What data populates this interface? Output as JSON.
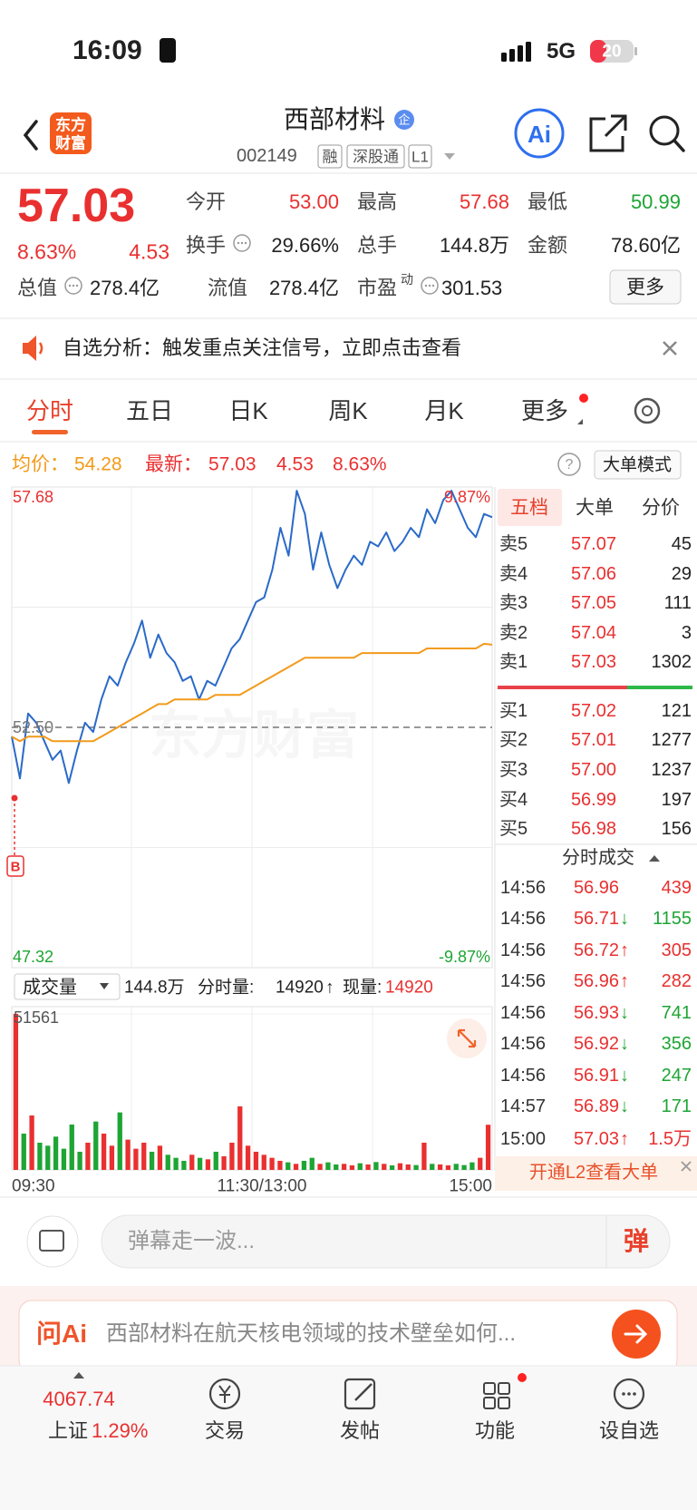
{
  "status_bar": {
    "time": "16:09",
    "network": "5G",
    "battery": "20"
  },
  "header": {
    "logo": [
      "东方",
      "财富"
    ],
    "title": "西部材料",
    "badge": "企",
    "code": "002149",
    "tags": [
      "融",
      "深股通",
      "L1"
    ],
    "ai": "Ai"
  },
  "quote": {
    "price": "57.03",
    "change_pct": "8.63%",
    "change": "4.53",
    "stats": [
      {
        "label": "今开",
        "value": "53.00",
        "color": "#e93030"
      },
      {
        "label": "最高",
        "value": "57.68",
        "color": "#e93030"
      },
      {
        "label": "最低",
        "value": "50.99",
        "color": "#1ea534"
      },
      {
        "label": "换手",
        "value": "29.66%",
        "info": true
      },
      {
        "label": "总手",
        "value": "144.8万"
      },
      {
        "label": "金额",
        "value": "78.60亿"
      },
      {
        "label": "总值",
        "value": "278.4亿",
        "info": true
      },
      {
        "label": "流值",
        "value": "278.4亿"
      },
      {
        "label": "市盈",
        "sup": "动",
        "value": "301.53",
        "info": true
      }
    ],
    "more": "更多"
  },
  "notice": {
    "text": "自选分析：触发重点关注信号，立即点击查看"
  },
  "tabs": {
    "items": [
      "分时",
      "五日",
      "日K",
      "周K",
      "月K",
      "更多"
    ],
    "active": 0
  },
  "summary": {
    "avg_label": "均价：",
    "avg": "54.28",
    "last_label": "最新：",
    "last": "57.03",
    "change": "4.53",
    "change_pct": "8.63%",
    "help": "?",
    "mode": "大单模式"
  },
  "chart_data": [
    {
      "type": "line",
      "ylim": [
        47.32,
        57.68
      ],
      "yticks": [
        57.68,
        {
          "value": 52.5,
          "label": "52.50"
        },
        47.32
      ],
      "y2lim": [
        -9.87,
        9.87
      ],
      "y2ticks": [
        {
          "value": 9.87,
          "label": "9.87%"
        },
        {
          "value": -9.87,
          "label": "-9.87%"
        }
      ],
      "marker": "B",
      "watermark": "东方财富",
      "series": [
        {
          "color": "#2a6ac8",
          "values": [
            52.3,
            51.4,
            52.8,
            52.6,
            52.2,
            51.8,
            52.0,
            51.3,
            52.0,
            52.6,
            52.4,
            53.1,
            53.6,
            53.4,
            53.9,
            54.3,
            54.8,
            54.0,
            54.5,
            54.1,
            53.9,
            53.5,
            53.6,
            53.1,
            53.5,
            53.4,
            53.8,
            54.2,
            54.4,
            54.8,
            55.2,
            55.3,
            55.9,
            56.8,
            56.2,
            57.6,
            57.1,
            55.9,
            56.7,
            56.0,
            55.5,
            55.9,
            56.2,
            56.0,
            56.5,
            56.4,
            56.7,
            56.3,
            56.5,
            56.8,
            56.6,
            57.2,
            56.9,
            57.4,
            57.6,
            57.2,
            56.8,
            56.6,
            57.1,
            57.03
          ]
        },
        {
          "color": "#f29a1a",
          "values": [
            52.3,
            52.2,
            52.3,
            52.3,
            52.3,
            52.2,
            52.2,
            52.2,
            52.2,
            52.2,
            52.2,
            52.3,
            52.4,
            52.5,
            52.6,
            52.7,
            52.8,
            52.9,
            53.0,
            53.0,
            53.1,
            53.1,
            53.1,
            53.1,
            53.1,
            53.2,
            53.2,
            53.2,
            53.2,
            53.3,
            53.4,
            53.5,
            53.6,
            53.7,
            53.8,
            53.9,
            54.0,
            54.0,
            54.0,
            54.0,
            54.0,
            54.0,
            54.0,
            54.1,
            54.1,
            54.1,
            54.1,
            54.1,
            54.1,
            54.1,
            54.1,
            54.2,
            54.2,
            54.2,
            54.2,
            54.2,
            54.2,
            54.2,
            54.3,
            54.28
          ]
        }
      ]
    },
    {
      "type": "bar",
      "title": "成交量",
      "total": "144.8万",
      "period_label": "分时量:",
      "period_value": "14920",
      "arrow": "↑",
      "current_label": "现量:",
      "current_value": "14920",
      "ylim": [
        0,
        51561
      ],
      "yticks": [
        51561
      ],
      "x_labels": [
        "09:30",
        "11:30/13:00",
        "15:00"
      ],
      "series": [
        {
          "color": "#e93030",
          "values": [
            51561,
            null,
            18000,
            null,
            null,
            null,
            null,
            null,
            null,
            9000,
            null,
            12000,
            8000,
            null,
            10000,
            7000,
            9000,
            null,
            8000,
            null,
            null,
            null,
            5000,
            null,
            3500,
            null,
            4500,
            9000,
            21000,
            8000,
            6000,
            5000,
            4000,
            3000,
            null,
            2000,
            null,
            null,
            2000,
            null,
            null,
            2000,
            1500,
            null,
            1800,
            null,
            2000,
            null,
            2200,
            1800,
            null,
            9000,
            null,
            1800,
            1500,
            null,
            null,
            null,
            4000,
            14920
          ]
        },
        {
          "color": "#1ea534",
          "values": [
            null,
            12000,
            null,
            9000,
            8000,
            11000,
            7000,
            15000,
            6000,
            null,
            16000,
            null,
            null,
            19000,
            null,
            null,
            null,
            6000,
            null,
            5000,
            4000,
            3000,
            null,
            4000,
            null,
            6000,
            null,
            null,
            null,
            null,
            null,
            null,
            null,
            null,
            2500,
            null,
            3000,
            4000,
            null,
            2500,
            1800,
            null,
            null,
            2200,
            null,
            2600,
            null,
            1500,
            null,
            null,
            1600,
            null,
            2000,
            null,
            null,
            2000,
            1600,
            2500,
            null,
            null
          ]
        }
      ]
    }
  ],
  "order_book": {
    "tabs": [
      "五档",
      "大单",
      "分价"
    ],
    "asks": [
      {
        "label": "卖5",
        "price": "57.07",
        "volume": "45"
      },
      {
        "label": "卖4",
        "price": "57.06",
        "volume": "29"
      },
      {
        "label": "卖3",
        "price": "57.05",
        "volume": "111"
      },
      {
        "label": "卖2",
        "price": "57.04",
        "volume": "3"
      },
      {
        "label": "卖1",
        "price": "57.03",
        "volume": "1302"
      }
    ],
    "bids": [
      {
        "label": "买1",
        "price": "57.02",
        "volume": "121"
      },
      {
        "label": "买2",
        "price": "57.01",
        "volume": "1277"
      },
      {
        "label": "买3",
        "price": "57.00",
        "volume": "1237"
      },
      {
        "label": "买4",
        "price": "56.99",
        "volume": "197"
      },
      {
        "label": "买5",
        "price": "56.98",
        "volume": "156"
      }
    ]
  },
  "trades": {
    "title": "分时成交",
    "rows": [
      {
        "time": "14:56",
        "price": "56.96",
        "volume": "439"
      },
      {
        "time": "14:56",
        "price": "56.71",
        "arrow": "↓",
        "volume": "1155"
      },
      {
        "time": "14:56",
        "price": "56.72",
        "arrow": "↑",
        "volume": "305"
      },
      {
        "time": "14:56",
        "price": "56.96",
        "arrow": "↑",
        "volume": "282"
      },
      {
        "time": "14:56",
        "price": "56.93",
        "arrow": "↓",
        "volume": "741"
      },
      {
        "time": "14:56",
        "price": "56.92",
        "arrow": "↓",
        "volume": "356"
      },
      {
        "time": "14:56",
        "price": "56.91",
        "arrow": "↓",
        "volume": "247"
      },
      {
        "time": "14:57",
        "price": "56.89",
        "arrow": "↓",
        "volume": "171"
      },
      {
        "time": "15:00",
        "price": "57.03",
        "arrow": "↑",
        "volume": "1.5万"
      }
    ],
    "l2_banner": "开通L2查看大单"
  },
  "comment": {
    "placeholder": "弹幕走一波...",
    "button": "弹"
  },
  "ai_bar": {
    "brand": "问Ai",
    "text": "西部材料在航天核电领域的技术壁垒如何..."
  },
  "nav": {
    "index_value": "4067.74",
    "index_name": "上证",
    "index_pct": "1.29%",
    "items": [
      "交易",
      "发帖",
      "功能",
      "设自选"
    ]
  }
}
